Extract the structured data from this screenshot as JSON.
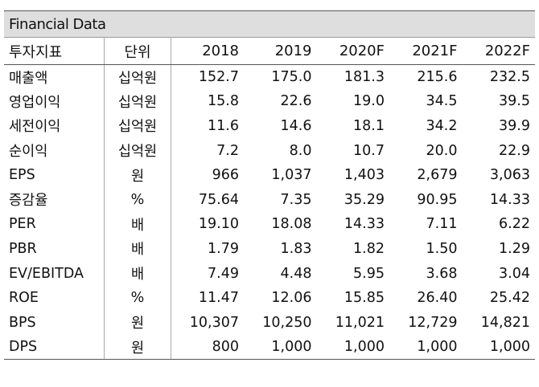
{
  "title": "Financial Data",
  "header": {
    "indicator": "투자지표",
    "unit": "단위",
    "years": [
      "2018",
      "2019",
      "2020F",
      "2021F",
      "2022F"
    ]
  },
  "rows": [
    {
      "name": "매출액",
      "unit": "십억원",
      "values": [
        "152.7",
        "175.0",
        "181.3",
        "215.6",
        "232.5"
      ]
    },
    {
      "name": "영업이익",
      "unit": "십억원",
      "values": [
        "15.8",
        "22.6",
        "19.0",
        "34.5",
        "39.5"
      ]
    },
    {
      "name": "세전이익",
      "unit": "십억원",
      "values": [
        "11.6",
        "14.6",
        "18.1",
        "34.2",
        "39.9"
      ]
    },
    {
      "name": "순이익",
      "unit": "십억원",
      "values": [
        "7.2",
        "8.0",
        "10.7",
        "20.0",
        "22.9"
      ]
    },
    {
      "name": "EPS",
      "unit": "원",
      "values": [
        "966",
        "1,037",
        "1,403",
        "2,679",
        "3,063"
      ]
    },
    {
      "name": "증감율",
      "unit": "%",
      "values": [
        "75.64",
        "7.35",
        "35.29",
        "90.95",
        "14.33"
      ]
    },
    {
      "name": "PER",
      "unit": "배",
      "values": [
        "19.10",
        "18.08",
        "14.33",
        "7.11",
        "6.22"
      ]
    },
    {
      "name": "PBR",
      "unit": "배",
      "values": [
        "1.79",
        "1.83",
        "1.82",
        "1.50",
        "1.29"
      ]
    },
    {
      "name": "EV/EBITDA",
      "unit": "배",
      "values": [
        "7.49",
        "4.48",
        "5.95",
        "3.68",
        "3.04"
      ]
    },
    {
      "name": "ROE",
      "unit": "%",
      "values": [
        "11.47",
        "12.06",
        "15.85",
        "26.40",
        "25.42"
      ]
    },
    {
      "name": "BPS",
      "unit": "원",
      "values": [
        "10,307",
        "10,250",
        "11,021",
        "12,729",
        "14,821"
      ]
    },
    {
      "name": "DPS",
      "unit": "원",
      "values": [
        "800",
        "1,000",
        "1,000",
        "1,000",
        "1,000"
      ]
    }
  ]
}
